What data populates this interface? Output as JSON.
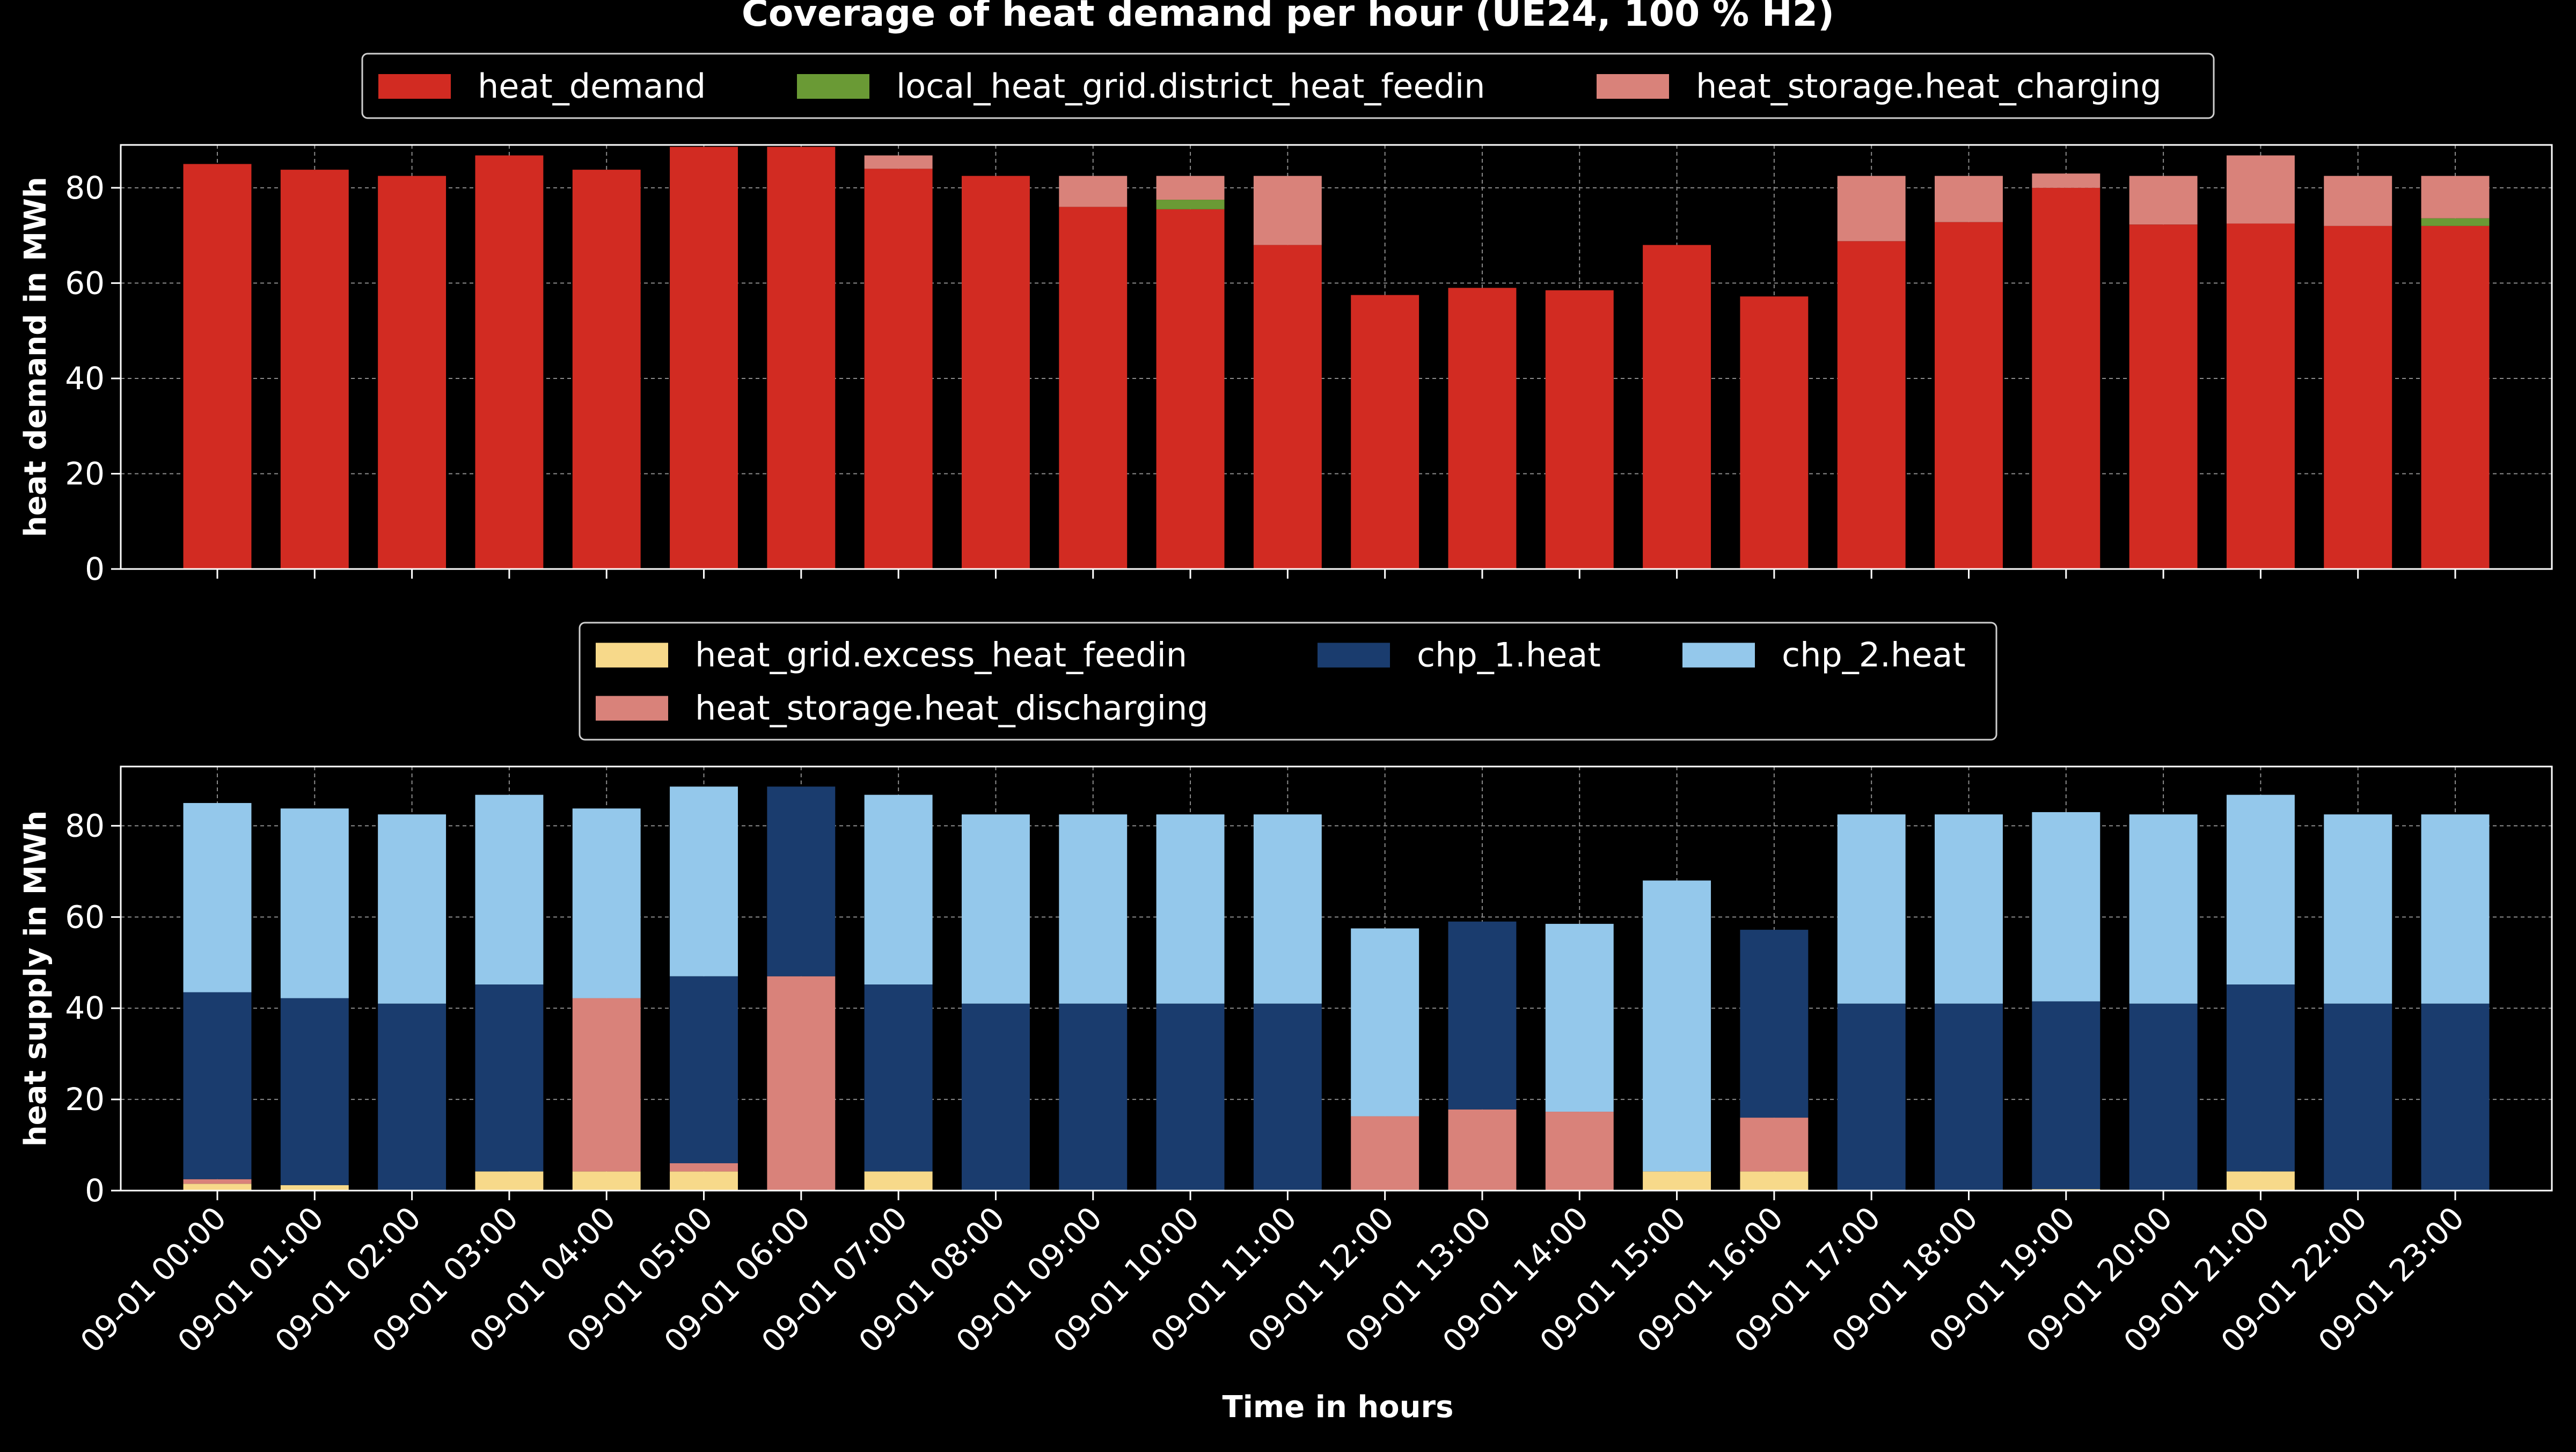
{
  "page": {
    "title": "Coverage of heat demand per hour (UE24, 100 % H2)",
    "xlabel": "Time in hours"
  },
  "colors": {
    "background": "#000000",
    "axis": "#ffffff",
    "grid": "#8a8a8a",
    "heat_demand": "#d22b22",
    "district_heat_feedin": "#6a9a35",
    "heat_charging": "#d9827a",
    "excess_heat_feedin": "#f7d98a",
    "heat_discharging": "#d9827a",
    "chp_1_heat": "#1a3c6e",
    "chp_2_heat": "#94c8eb"
  },
  "chart_data": [
    {
      "type": "bar",
      "stacked": true,
      "ylabel": "heat demand in MWh",
      "ylim": [
        0,
        89
      ],
      "yticks": [
        "0",
        "20",
        "40",
        "60",
        "80"
      ],
      "grid": true,
      "legend_position": "top-center",
      "categories": [
        "09-01 00:00",
        "09-01 01:00",
        "09-01 02:00",
        "09-01 03:00",
        "09-01 04:00",
        "09-01 05:00",
        "09-01 06:00",
        "09-01 07:00",
        "09-01 08:00",
        "09-01 09:00",
        "09-01 10:00",
        "09-01 11:00",
        "09-01 12:00",
        "09-01 13:00",
        "09-01 14:00",
        "09-01 15:00",
        "09-01 16:00",
        "09-01 17:00",
        "09-01 18:00",
        "09-01 19:00",
        "09-01 20:00",
        "09-01 21:00",
        "09-01 22:00",
        "09-01 23:00"
      ],
      "series": [
        {
          "name": "heat_demand",
          "color_key": "heat_demand",
          "values": [
            85.0,
            83.8,
            82.5,
            86.8,
            83.8,
            88.6,
            88.6,
            84.0,
            82.5,
            76.0,
            75.5,
            68.0,
            57.5,
            59.0,
            58.5,
            68.0,
            57.2,
            68.8,
            72.8,
            80.0,
            72.3,
            72.5,
            72.0,
            72.0
          ]
        },
        {
          "name": "local_heat_grid.district_heat_feedin",
          "color_key": "district_heat_feedin",
          "values": [
            0,
            0,
            0,
            0,
            0,
            0,
            0,
            0,
            0,
            0,
            2.0,
            0,
            0,
            0,
            0,
            0,
            0,
            0,
            0,
            0,
            0,
            0,
            0,
            1.6
          ]
        },
        {
          "name": "heat_storage.heat_charging",
          "color_key": "heat_charging",
          "values": [
            0,
            0,
            0,
            0,
            0,
            0,
            0,
            2.8,
            0,
            6.5,
            5.0,
            14.5,
            0,
            0,
            0,
            0,
            0,
            13.7,
            9.7,
            3.0,
            10.2,
            14.3,
            10.5,
            8.9
          ]
        }
      ]
    },
    {
      "type": "bar",
      "stacked": true,
      "ylabel": "heat supply in MWh",
      "ylim": [
        0,
        93
      ],
      "yticks": [
        "0",
        "20",
        "40",
        "60",
        "80"
      ],
      "grid": true,
      "legend_position": "top-center",
      "categories": [
        "09-01 00:00",
        "09-01 01:00",
        "09-01 02:00",
        "09-01 03:00",
        "09-01 04:00",
        "09-01 05:00",
        "09-01 06:00",
        "09-01 07:00",
        "09-01 08:00",
        "09-01 09:00",
        "09-01 10:00",
        "09-01 11:00",
        "09-01 12:00",
        "09-01 13:00",
        "09-01 14:00",
        "09-01 15:00",
        "09-01 16:00",
        "09-01 17:00",
        "09-01 18:00",
        "09-01 19:00",
        "09-01 20:00",
        "09-01 21:00",
        "09-01 22:00",
        "09-01 23:00"
      ],
      "series": [
        {
          "name": "heat_grid.excess_heat_feedin",
          "color_key": "excess_heat_feedin",
          "values": [
            1.5,
            1.2,
            0,
            4.2,
            4.2,
            4.2,
            0,
            4.2,
            0,
            0,
            0,
            0,
            0,
            0,
            0,
            4.2,
            4.2,
            0,
            0,
            0.3,
            0,
            4.2,
            0,
            0
          ]
        },
        {
          "name": "heat_storage.heat_discharging",
          "color_key": "heat_discharging",
          "values": [
            1.0,
            0,
            0,
            0,
            38.0,
            1.8,
            47.0,
            0,
            0,
            0,
            0,
            0,
            16.3,
            17.8,
            17.3,
            0,
            11.8,
            0,
            0,
            0,
            0,
            0,
            0,
            0
          ]
        },
        {
          "name": "chp_1.heat",
          "color_key": "chp_1_heat",
          "values": [
            41.0,
            41.0,
            41.0,
            41.0,
            0,
            41.0,
            41.6,
            41.0,
            41.0,
            41.0,
            41.0,
            41.0,
            0,
            41.2,
            0,
            0,
            41.2,
            41.0,
            41.0,
            41.2,
            41.0,
            41.0,
            41.0,
            41.0
          ]
        },
        {
          "name": "chp_2.heat",
          "color_key": "chp_2_heat",
          "values": [
            41.5,
            41.6,
            41.5,
            41.6,
            41.6,
            41.6,
            0,
            41.6,
            41.5,
            41.5,
            41.5,
            41.5,
            41.2,
            0,
            41.2,
            63.8,
            0,
            41.5,
            41.5,
            41.5,
            41.5,
            41.6,
            41.5,
            41.5
          ]
        }
      ]
    }
  ]
}
